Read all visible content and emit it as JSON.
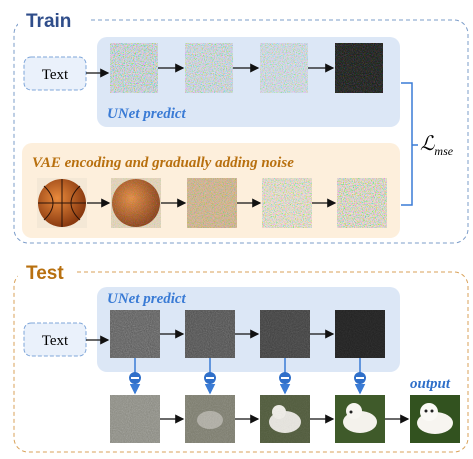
{
  "train": {
    "title": "Train",
    "input": "Text",
    "unet_label": "UNet predict",
    "vae_label": "VAE encoding and gradually adding noise",
    "loss": {
      "symbol": "ℒ",
      "subscript": "mse"
    }
  },
  "test": {
    "title": "Test",
    "input": "Text",
    "unet_label": "UNet predict",
    "output_label": "output"
  }
}
